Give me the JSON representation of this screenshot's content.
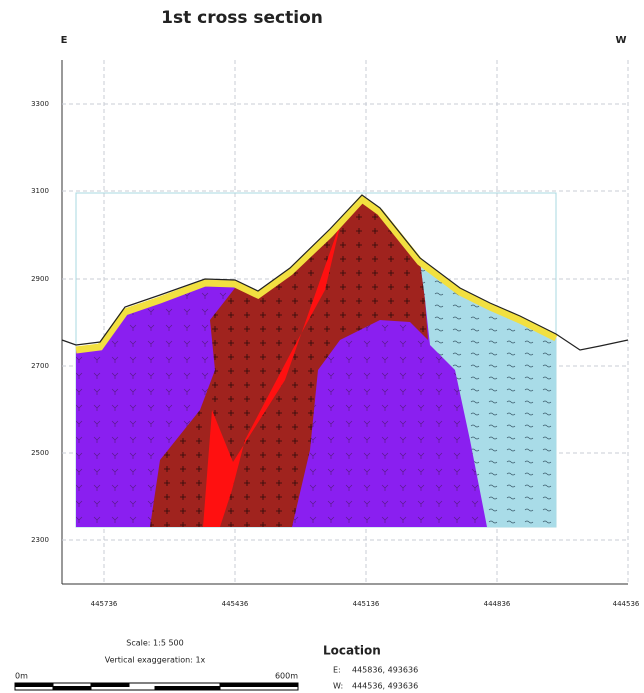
{
  "title": "1st cross section",
  "left_direction": "E",
  "right_direction": "W",
  "y_axis": {
    "ticks": [
      "3300",
      "3100",
      "2900",
      "2700",
      "2500",
      "2300"
    ]
  },
  "x_axis": {
    "ticks": [
      "445736",
      "445436",
      "445136",
      "444836",
      "444536"
    ]
  },
  "scale": {
    "ratio": "Scale: 1:5 500",
    "exaggeration": "Vertical exaggeration: 1x",
    "start": "0m",
    "end": "600m"
  },
  "location": {
    "title": "Location",
    "rows": [
      [
        "E:",
        "445836, 493636"
      ],
      [
        "W:",
        "444536, 493636"
      ]
    ]
  }
}
